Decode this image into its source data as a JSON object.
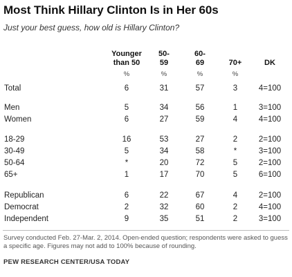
{
  "title": "Most Think Hillary Clinton Is in Her 60s",
  "subtitle": "Just your best guess, how old is Hillary Clinton?",
  "columns": [
    {
      "line1": "Younger",
      "line2": "than 50",
      "unit": "%"
    },
    {
      "line1": "50-",
      "line2": "59",
      "unit": "%"
    },
    {
      "line1": "60-",
      "line2": "69",
      "unit": "%"
    },
    {
      "line1": "70+",
      "line2": "",
      "unit": "%"
    },
    {
      "line1": "DK",
      "line2": "",
      "unit": ""
    }
  ],
  "rows": [
    {
      "label": "Total",
      "values": [
        "6",
        "31",
        "57",
        "3",
        "4=100"
      ]
    },
    {
      "label": "Men",
      "values": [
        "5",
        "34",
        "56",
        "1",
        "3=100"
      ]
    },
    {
      "label": "Women",
      "values": [
        "6",
        "27",
        "59",
        "4",
        "4=100"
      ]
    },
    {
      "label": "18-29",
      "values": [
        "16",
        "53",
        "27",
        "2",
        "2=100"
      ]
    },
    {
      "label": "30-49",
      "values": [
        "5",
        "34",
        "58",
        "*",
        "3=100"
      ]
    },
    {
      "label": "50-64",
      "values": [
        "*",
        "20",
        "72",
        "5",
        "2=100"
      ]
    },
    {
      "label": "65+",
      "values": [
        "1",
        "17",
        "70",
        "5",
        "6=100"
      ]
    },
    {
      "label": "Republican",
      "values": [
        "6",
        "22",
        "67",
        "4",
        "2=100"
      ]
    },
    {
      "label": "Democrat",
      "values": [
        "2",
        "32",
        "60",
        "2",
        "4=100"
      ]
    },
    {
      "label": "Independent",
      "values": [
        "9",
        "35",
        "51",
        "2",
        "3=100"
      ]
    }
  ],
  "note": "Survey conducted Feb. 27-Mar. 2, 2014. Open-ended question; respondents were asked to guess a specific age. Figures may not add to 100% because of rounding.",
  "source": "PEW RESEARCH CENTER/USA TODAY"
}
